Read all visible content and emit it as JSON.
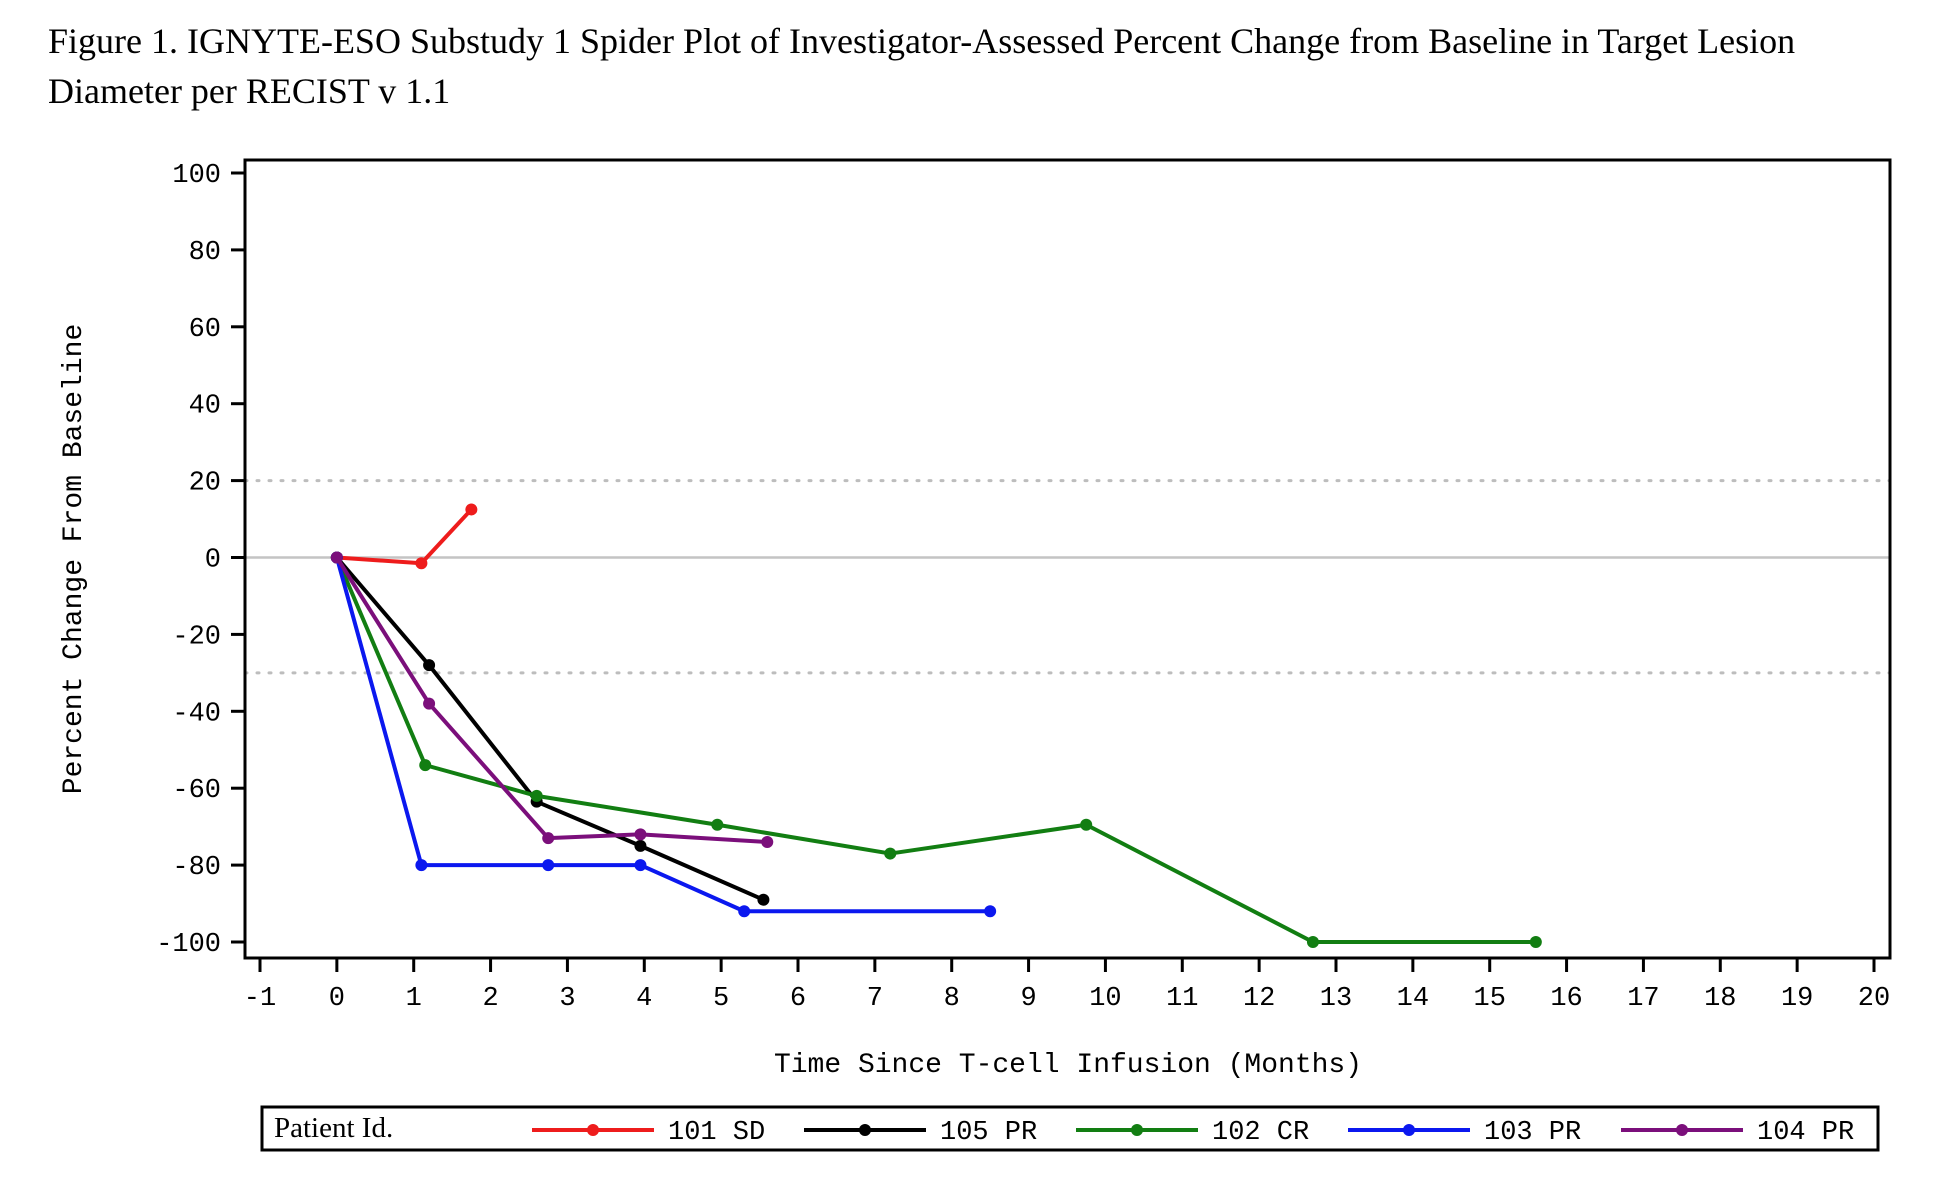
{
  "title": "Figure 1. IGNYTE-ESO Substudy 1 Spider Plot of Investigator-Assessed Percent Change from Baseline in Target Lesion Diameter per RECIST v 1.1",
  "chart_data": {
    "type": "line",
    "title": "Figure 1. IGNYTE-ESO Substudy 1 Spider Plot of Investigator-Assessed Percent Change from Baseline in Target Lesion Diameter per RECIST v 1.1",
    "xlabel": "Time Since T-cell Infusion (Months)",
    "ylabel": "Percent Change From Baseline",
    "xlim": [
      -1,
      20
    ],
    "ylim": [
      -100,
      100
    ],
    "x_ticks": [
      -1,
      0,
      1,
      2,
      3,
      4,
      5,
      6,
      7,
      8,
      9,
      10,
      11,
      12,
      13,
      14,
      15,
      16,
      17,
      18,
      19,
      20
    ],
    "y_ticks": [
      -100,
      -80,
      -60,
      -40,
      -20,
      0,
      20,
      40,
      60,
      80,
      100
    ],
    "reference_lines": [
      {
        "y": 20,
        "style": "dotted"
      },
      {
        "y": 0,
        "style": "solid"
      },
      {
        "y": -30,
        "style": "dotted"
      }
    ],
    "grid": false,
    "legend_title": "Patient Id.",
    "legend_position": "bottom",
    "series": [
      {
        "name": "101 SD",
        "color": "#ee1c1c",
        "points": [
          [
            0,
            0
          ],
          [
            1.1,
            -1.5
          ],
          [
            1.75,
            12.5
          ]
        ]
      },
      {
        "name": "105 PR",
        "color": "#000000",
        "points": [
          [
            0,
            0
          ],
          [
            1.2,
            -28
          ],
          [
            2.6,
            -63.5
          ],
          [
            3.95,
            -75
          ],
          [
            5.55,
            -89
          ]
        ]
      },
      {
        "name": "102 CR",
        "color": "#127e12",
        "points": [
          [
            0,
            0
          ],
          [
            1.15,
            -54
          ],
          [
            2.6,
            -62
          ],
          [
            4.95,
            -69.5
          ],
          [
            7.2,
            -77
          ],
          [
            9.75,
            -69.5
          ],
          [
            12.7,
            -100
          ],
          [
            15.6,
            -100
          ]
        ]
      },
      {
        "name": "103 PR",
        "color": "#0b18ef",
        "points": [
          [
            0,
            0
          ],
          [
            1.1,
            -80
          ],
          [
            2.75,
            -80
          ],
          [
            3.95,
            -80
          ],
          [
            5.3,
            -92
          ],
          [
            8.5,
            -92
          ]
        ]
      },
      {
        "name": "104 PR",
        "color": "#7b0f7b",
        "points": [
          [
            0,
            0
          ],
          [
            1.2,
            -38
          ],
          [
            2.75,
            -73
          ],
          [
            3.95,
            -72
          ],
          [
            5.6,
            -74
          ]
        ]
      }
    ]
  }
}
